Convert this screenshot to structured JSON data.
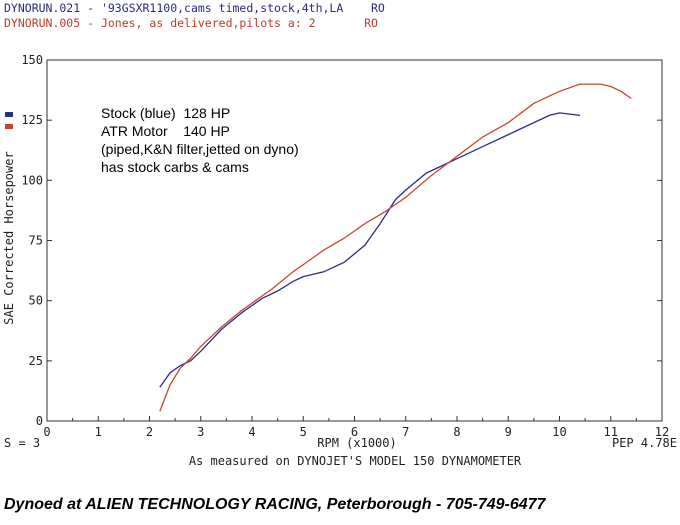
{
  "header": {
    "run1": {
      "file": "DYNORUN.021",
      "desc": "- '93GSXR1100,cams timed,stock,4th,LA",
      "code": "RO"
    },
    "run2": {
      "file": "DYNORUN.005",
      "desc": "- Jones, as delivered,pilots a: 2",
      "code": "RO"
    }
  },
  "status": {
    "left": "S = 3",
    "right": "PEP 4.78E"
  },
  "caption": "As measured on DYNOJET'S MODEL 150 DYNAMOMETER",
  "footer": "Dynoed at ALIEN TECHNOLOGY RACING, Peterborough - 705-749-6477",
  "annotations": [
    "Stock (blue)  128 HP",
    "ATR Motor    140 HP",
    "(piped,K&N filter,jetted on dyno)",
    "has stock carbs & cams"
  ],
  "colors": {
    "stock": "#2b2b8c",
    "atr": "#c4482e",
    "axis": "#333333",
    "text": "#222222"
  },
  "chart_data": {
    "type": "line",
    "xlabel": "RPM (x1000)",
    "ylabel": "SAE Corrected Horsepower",
    "xlim": [
      0,
      12
    ],
    "ylim": [
      0,
      150
    ],
    "xticks": [
      "0",
      "1",
      "2",
      "3",
      "4",
      "5",
      "6",
      "7",
      "8",
      "9",
      "10",
      "11",
      "12"
    ],
    "yticks": [
      "0",
      "25",
      "50",
      "75",
      "100",
      "125",
      "150"
    ],
    "legend_position": "left",
    "series": [
      {
        "key": "stock",
        "x": [
          2.2,
          2.4,
          2.6,
          2.8,
          3.0,
          3.4,
          3.8,
          4.0,
          4.2,
          4.5,
          4.8,
          5.0,
          5.4,
          5.8,
          6.2,
          6.5,
          6.8,
          7.0,
          7.4,
          8.0,
          8.6,
          9.0,
          9.4,
          9.8,
          10.0,
          10.4
        ],
        "y": [
          14,
          20,
          23,
          25,
          29,
          38,
          45,
          48,
          51,
          54,
          58,
          60,
          62,
          66,
          73,
          82,
          92,
          96,
          103,
          109,
          115,
          119,
          123,
          127,
          128,
          127
        ]
      },
      {
        "key": "atr",
        "x": [
          2.2,
          2.4,
          2.6,
          2.8,
          3.0,
          3.4,
          3.8,
          4.0,
          4.4,
          4.8,
          5.0,
          5.4,
          5.8,
          6.2,
          6.6,
          7.0,
          7.5,
          8.0,
          8.5,
          9.0,
          9.5,
          10.0,
          10.4,
          10.8,
          11.0,
          11.2,
          11.4
        ],
        "y": [
          4,
          15,
          22,
          26,
          31,
          39,
          46,
          49,
          55,
          62,
          65,
          71,
          76,
          82,
          87,
          93,
          102,
          110,
          118,
          124,
          132,
          137,
          140,
          140,
          139,
          137,
          134
        ]
      }
    ]
  }
}
